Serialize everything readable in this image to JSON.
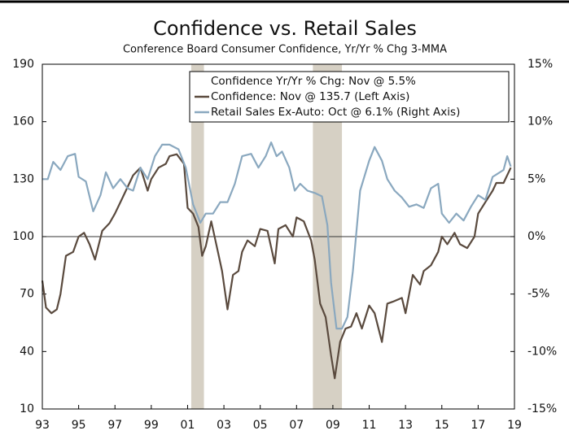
{
  "chart_data": {
    "type": "line",
    "title": "Confidence vs. Retail Sales",
    "subtitle": "Conference Board Consumer Confidence, Yr/Yr % Chg 3-MMA",
    "legend_title": "Confidence Yr/Yr % Chg: Nov @ 5.5%",
    "legend_position": "top-right",
    "xlim": [
      1993,
      2019
    ],
    "xticks": [
      {
        "value": 1993,
        "label": "93"
      },
      {
        "value": 1995,
        "label": "95"
      },
      {
        "value": 1997,
        "label": "97"
      },
      {
        "value": 1999,
        "label": "99"
      },
      {
        "value": 2001,
        "label": "01"
      },
      {
        "value": 2003,
        "label": "03"
      },
      {
        "value": 2005,
        "label": "05"
      },
      {
        "value": 2007,
        "label": "07"
      },
      {
        "value": 2009,
        "label": "09"
      },
      {
        "value": 2011,
        "label": "11"
      },
      {
        "value": 2013,
        "label": "13"
      },
      {
        "value": 2015,
        "label": "15"
      },
      {
        "value": 2017,
        "label": "17"
      },
      {
        "value": 2019,
        "label": "19"
      }
    ],
    "ylim": [
      10,
      190
    ],
    "yticks": [
      10,
      40,
      70,
      100,
      130,
      160,
      190
    ],
    "y2lim": [
      -15,
      15
    ],
    "y2ticks": [
      {
        "value": -15,
        "label": "-15%"
      },
      {
        "value": -10,
        "label": "-10%"
      },
      {
        "value": -5,
        "label": "-5%"
      },
      {
        "value": 0,
        "label": "0%"
      },
      {
        "value": 5,
        "label": "5%"
      },
      {
        "value": 10,
        "label": "10%"
      },
      {
        "value": 15,
        "label": "15%"
      }
    ],
    "reference_line": 100,
    "recessions": [
      [
        2001.2,
        2001.9
      ],
      [
        2007.9,
        2009.5
      ]
    ],
    "recession_color": "#d6d0c4",
    "series": [
      {
        "name": "Confidence: Nov @ 135.7 (Left Axis)",
        "color": "#5a4a3e",
        "axis": "y",
        "x": [
          1993.0,
          1993.2,
          1993.5,
          1993.8,
          1994.0,
          1994.3,
          1994.7,
          1995.0,
          1995.3,
          1995.6,
          1995.9,
          1996.3,
          1996.7,
          1997.0,
          1997.4,
          1997.8,
          1998.0,
          1998.4,
          1998.8,
          1999.0,
          1999.4,
          1999.8,
          2000.0,
          2000.4,
          2000.8,
          2001.0,
          2001.3,
          2001.6,
          2001.8,
          2002.0,
          2002.3,
          2002.6,
          2002.9,
          2003.2,
          2003.5,
          2003.8,
          2004.0,
          2004.3,
          2004.7,
          2005.0,
          2005.4,
          2005.8,
          2006.0,
          2006.4,
          2006.8,
          2007.0,
          2007.4,
          2007.8,
          2008.0,
          2008.3,
          2008.6,
          2008.9,
          2009.1,
          2009.4,
          2009.7,
          2010.0,
          2010.3,
          2010.6,
          2011.0,
          2011.3,
          2011.7,
          2012.0,
          2012.3,
          2012.8,
          2013.0,
          2013.4,
          2013.8,
          2014.0,
          2014.4,
          2014.8,
          2015.0,
          2015.3,
          2015.7,
          2016.0,
          2016.4,
          2016.8,
          2017.0,
          2017.4,
          2017.8,
          2018.0,
          2018.4,
          2018.8
        ],
        "values": [
          77,
          63,
          60,
          62,
          70,
          90,
          92,
          100,
          102,
          96,
          88,
          103,
          107,
          112,
          120,
          128,
          132,
          136,
          124,
          130,
          136,
          138,
          142,
          143,
          138,
          115,
          112,
          105,
          90,
          95,
          108,
          95,
          82,
          62,
          80,
          82,
          92,
          98,
          95,
          104,
          103,
          86,
          104,
          106,
          100,
          110,
          108,
          98,
          88,
          65,
          58,
          38,
          26,
          45,
          52,
          53,
          60,
          52,
          64,
          60,
          45,
          65,
          66,
          68,
          60,
          80,
          75,
          82,
          85,
          92,
          100,
          96,
          102,
          96,
          94,
          100,
          112,
          118,
          124,
          128,
          128,
          136
        ]
      },
      {
        "name": "Retail Sales Ex-Auto: Oct @ 6.1% (Right Axis)",
        "color": "#8aa8bf",
        "axis": "y2",
        "x": [
          1993.0,
          1993.3,
          1993.6,
          1994.0,
          1994.4,
          1994.8,
          1995.0,
          1995.4,
          1995.8,
          1996.2,
          1996.5,
          1996.9,
          1997.3,
          1997.7,
          1998.0,
          1998.4,
          1998.8,
          1999.2,
          1999.6,
          2000.0,
          2000.5,
          2000.9,
          2001.3,
          2001.7,
          2002.0,
          2002.4,
          2002.8,
          2003.2,
          2003.6,
          2004.0,
          2004.5,
          2004.9,
          2005.3,
          2005.6,
          2005.9,
          2006.2,
          2006.6,
          2006.9,
          2007.2,
          2007.6,
          2008.0,
          2008.4,
          2008.7,
          2008.9,
          2009.2,
          2009.5,
          2009.8,
          2010.1,
          2010.5,
          2011.0,
          2011.3,
          2011.7,
          2012.0,
          2012.4,
          2012.8,
          2013.2,
          2013.6,
          2014.0,
          2014.4,
          2014.8,
          2015.0,
          2015.4,
          2015.8,
          2016.2,
          2016.6,
          2017.0,
          2017.4,
          2017.8,
          2018.0,
          2018.4,
          2018.6,
          2018.8
        ],
        "values": [
          5.0,
          5.0,
          6.5,
          5.8,
          7.0,
          7.2,
          5.2,
          4.8,
          2.2,
          3.6,
          5.6,
          4.2,
          5.0,
          4.2,
          4.0,
          6.0,
          5.0,
          7.0,
          8.0,
          8.0,
          7.6,
          6.0,
          2.8,
          1.2,
          2.0,
          2.0,
          3.0,
          3.0,
          4.6,
          7.0,
          7.2,
          6.0,
          7.0,
          8.2,
          7.0,
          7.4,
          6.0,
          4.0,
          4.6,
          4.0,
          3.8,
          3.5,
          1.0,
          -4.0,
          -8.0,
          -8.0,
          -7.0,
          -3.0,
          4.0,
          6.6,
          7.8,
          6.6,
          5.0,
          4.0,
          3.4,
          2.6,
          2.8,
          2.5,
          4.2,
          4.6,
          2.0,
          1.2,
          2.0,
          1.4,
          2.6,
          3.6,
          3.2,
          5.2,
          5.4,
          5.8,
          7.0,
          6.1
        ]
      }
    ]
  }
}
